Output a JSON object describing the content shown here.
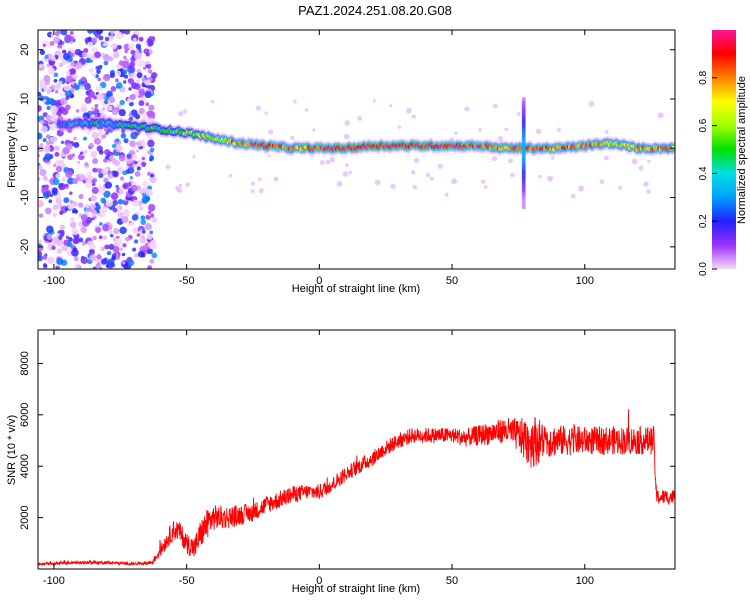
{
  "figure": {
    "title": "PAZ1.2024.251.08.20.G08"
  },
  "chart_data": [
    {
      "type": "heatmap",
      "xlabel": "Height of straight line (km)",
      "ylabel": "Frequency (Hz)",
      "xlim": [
        -106,
        134
      ],
      "ylim": [
        -24.5,
        24
      ],
      "xticks": [
        -100,
        -50,
        0,
        50,
        100
      ],
      "yticks": [
        -20,
        -10,
        0,
        10,
        20
      ],
      "grid": false,
      "colorbar": {
        "label": "Normalized spectral amplitude",
        "range": [
          0,
          1
        ],
        "ticks": [
          0.0,
          0.2,
          0.4,
          0.6,
          0.8
        ],
        "colormap": [
          "#f8d8f8",
          "#9b30ff",
          "#2020ff",
          "#00a0ff",
          "#00e0e0",
          "#00e000",
          "#a0ff00",
          "#ffff00",
          "#ff8000",
          "#ff0000",
          "#ff1493"
        ]
      },
      "ridge": {
        "x": [
          -96,
          -90,
          -85,
          -80,
          -70,
          -62,
          -55,
          -48,
          -40,
          -30,
          -20,
          -10,
          0,
          10,
          20,
          30,
          40,
          50,
          60,
          70,
          80,
          90,
          100,
          110,
          120,
          130,
          134
        ],
        "freq": [
          5,
          5,
          5,
          5,
          4.5,
          4,
          3.5,
          3,
          2,
          1,
          0.5,
          0,
          0,
          0,
          0.5,
          0.5,
          0.5,
          0.5,
          0.5,
          0,
          0,
          0,
          0.5,
          1,
          0,
          0,
          0
        ],
        "amplitude": [
          0.3,
          0.35,
          0.4,
          0.35,
          0.45,
          0.45,
          0.5,
          0.55,
          0.65,
          0.8,
          0.95,
          0.75,
          0.9,
          0.95,
          0.95,
          0.95,
          0.95,
          0.9,
          0.9,
          0.75,
          0.85,
          0.8,
          0.85,
          0.7,
          0.75,
          0.8,
          0.75
        ]
      },
      "noise_region": {
        "x_from": -106,
        "x_to": -62
      },
      "spike": {
        "x": 77,
        "freq_from": -12,
        "freq_to": 10
      }
    },
    {
      "type": "line",
      "xlabel": "Height of straight line (km)",
      "ylabel": "SNR (10 * v/v)",
      "xlim": [
        -106,
        134
      ],
      "ylim": [
        0,
        9300
      ],
      "xticks": [
        -100,
        -50,
        0,
        50,
        100
      ],
      "yticks": [
        2000,
        4000,
        6000,
        8000
      ],
      "grid": false,
      "series": [
        {
          "color": "#ff0000",
          "x": [
            -106,
            -90,
            -80,
            -70,
            -63,
            -60,
            -57,
            -55,
            -53,
            -50,
            -47,
            -45,
            -42,
            -40,
            -35,
            -30,
            -25,
            -20,
            -15,
            -10,
            -5,
            0,
            5,
            10,
            15,
            20,
            25,
            30,
            35,
            40,
            45,
            50,
            55,
            60,
            65,
            70,
            75,
            78,
            80,
            85,
            90,
            100,
            110,
            120,
            126,
            127,
            130,
            134
          ],
          "y": [
            200,
            250,
            250,
            200,
            250,
            700,
            1200,
            1500,
            1500,
            1000,
            800,
            1300,
            1800,
            2000,
            2000,
            2100,
            2200,
            2500,
            2700,
            2900,
            3000,
            3000,
            3300,
            3700,
            4000,
            4300,
            4700,
            5000,
            5200,
            5200,
            5200,
            5200,
            5100,
            5200,
            5300,
            5400,
            5200,
            5000,
            5000,
            5000,
            5000,
            5000,
            5000,
            5000,
            5000,
            2800,
            2800,
            2800
          ],
          "noise": [
            50,
            60,
            60,
            50,
            80,
            250,
            350,
            400,
            400,
            400,
            450,
            550,
            600,
            500,
            450,
            400,
            350,
            350,
            350,
            330,
            300,
            300,
            300,
            300,
            300,
            300,
            300,
            300,
            300,
            300,
            300,
            300,
            350,
            400,
            450,
            500,
            650,
            900,
            1100,
            700,
            600,
            550,
            550,
            550,
            550,
            300,
            300,
            300
          ]
        }
      ]
    }
  ]
}
